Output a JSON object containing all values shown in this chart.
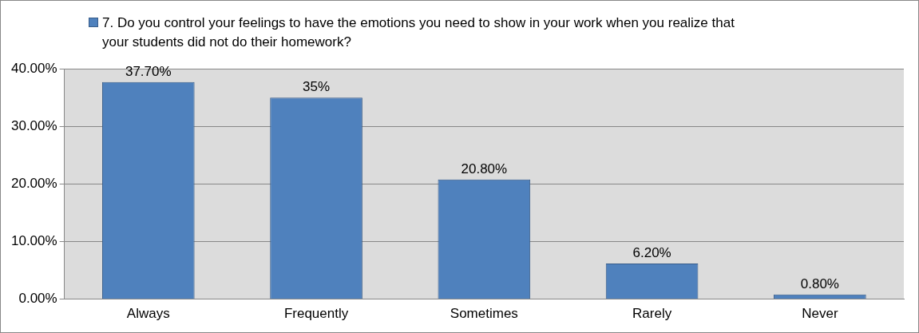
{
  "chart_data": {
    "type": "bar",
    "categories": [
      "Always",
      "Frequently",
      "Sometimes",
      "Rarely",
      "Never"
    ],
    "series": [
      {
        "name": "7. Do you control your feelings to have the emotions you need to show in your work when you realize that your students did not do their homework?",
        "color": "#4f81bd",
        "values": [
          37.7,
          35,
          20.8,
          6.2,
          0.8
        ],
        "value_labels": [
          "37.70%",
          "35%",
          "20.80%",
          "6.20%",
          "0.80%"
        ]
      }
    ],
    "ylim": [
      0,
      40
    ],
    "yticks": [
      {
        "value": 0,
        "label": "0.00%"
      },
      {
        "value": 10,
        "label": "10.00%"
      },
      {
        "value": 20,
        "label": "20.00%"
      },
      {
        "value": 30,
        "label": "30.00%"
      },
      {
        "value": 40,
        "label": "40.00%"
      }
    ],
    "grid": "y",
    "legend": "top"
  }
}
